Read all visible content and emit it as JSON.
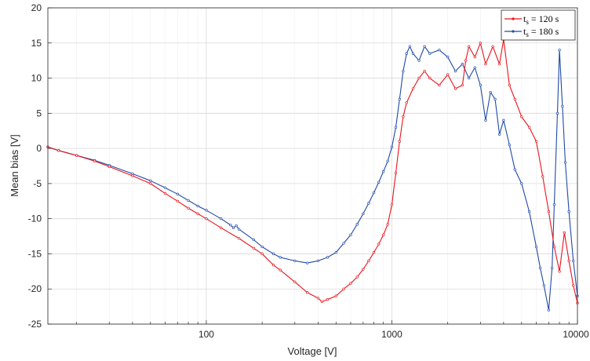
{
  "chart_data": {
    "type": "line",
    "title": "",
    "xlabel": "Voltage [V]",
    "ylabel": "Mean bias [V]",
    "xscale": "log",
    "xlim": [
      14,
      10000
    ],
    "ylim": [
      -25,
      20
    ],
    "grid": true,
    "legend_position": "top-right",
    "x_ticks": [
      {
        "value": 100,
        "label": "100"
      },
      {
        "value": 1000,
        "label": "1000"
      },
      {
        "value": 10000,
        "label": "10000"
      }
    ],
    "y_ticks": [
      {
        "value": 20,
        "label": "20"
      },
      {
        "value": 15,
        "label": "15"
      },
      {
        "value": 10,
        "label": "10"
      },
      {
        "value": 5,
        "label": "5"
      },
      {
        "value": 0,
        "label": "0"
      },
      {
        "value": -5,
        "label": "-5"
      },
      {
        "value": -10,
        "label": "-10"
      },
      {
        "value": -15,
        "label": "-15"
      },
      {
        "value": -20,
        "label": "-20"
      },
      {
        "value": -25,
        "label": "-25"
      }
    ],
    "series": [
      {
        "name": "t_s = 120 s",
        "legend_main": "t",
        "legend_sub": "s",
        "legend_rest": " = 120 s",
        "color": "#e8141b",
        "points": [
          [
            14,
            0.2
          ],
          [
            16,
            -0.3
          ],
          [
            20,
            -1.0
          ],
          [
            25,
            -1.8
          ],
          [
            30,
            -2.6
          ],
          [
            40,
            -3.9
          ],
          [
            50,
            -5.0
          ],
          [
            60,
            -6.4
          ],
          [
            70,
            -7.5
          ],
          [
            80,
            -8.5
          ],
          [
            90,
            -9.3
          ],
          [
            100,
            -10.0
          ],
          [
            120,
            -11.3
          ],
          [
            150,
            -12.8
          ],
          [
            180,
            -14.2
          ],
          [
            200,
            -15.0
          ],
          [
            230,
            -16.6
          ],
          [
            250,
            -17.3
          ],
          [
            300,
            -19.0
          ],
          [
            350,
            -20.5
          ],
          [
            400,
            -21.3
          ],
          [
            420,
            -21.8
          ],
          [
            450,
            -21.5
          ],
          [
            500,
            -21.0
          ],
          [
            550,
            -20.0
          ],
          [
            600,
            -19.2
          ],
          [
            650,
            -18.3
          ],
          [
            700,
            -17.2
          ],
          [
            750,
            -16.0
          ],
          [
            800,
            -14.8
          ],
          [
            850,
            -13.6
          ],
          [
            900,
            -12.3
          ],
          [
            950,
            -10.8
          ],
          [
            1000,
            -8.0
          ],
          [
            1050,
            -3.5
          ],
          [
            1100,
            1.0
          ],
          [
            1150,
            4.5
          ],
          [
            1200,
            6.5
          ],
          [
            1300,
            8.5
          ],
          [
            1400,
            10.0
          ],
          [
            1500,
            11.0
          ],
          [
            1600,
            10.0
          ],
          [
            1800,
            9.0
          ],
          [
            2000,
            10.5
          ],
          [
            2200,
            8.5
          ],
          [
            2400,
            9.0
          ],
          [
            2500,
            12.5
          ],
          [
            2600,
            14.5
          ],
          [
            2800,
            13.0
          ],
          [
            3000,
            15.0
          ],
          [
            3200,
            12.0
          ],
          [
            3500,
            14.5
          ],
          [
            3800,
            12.0
          ],
          [
            4000,
            15.5
          ],
          [
            4300,
            9.0
          ],
          [
            4600,
            7.0
          ],
          [
            5000,
            4.5
          ],
          [
            5500,
            3.0
          ],
          [
            6000,
            1.0
          ],
          [
            6500,
            -4.0
          ],
          [
            7000,
            -9.0
          ],
          [
            7500,
            -14.0
          ],
          [
            8000,
            -17.5
          ],
          [
            8500,
            -12.0
          ],
          [
            9000,
            -16.0
          ],
          [
            9500,
            -19.5
          ],
          [
            10000,
            -22.0
          ]
        ]
      },
      {
        "name": "t_s = 180 s",
        "legend_main": "t",
        "legend_sub": "s",
        "legend_rest": " = 180 s",
        "color": "#1f4aa8",
        "points": [
          [
            14,
            0.2
          ],
          [
            16,
            -0.3
          ],
          [
            20,
            -1.0
          ],
          [
            25,
            -1.7
          ],
          [
            30,
            -2.4
          ],
          [
            40,
            -3.6
          ],
          [
            50,
            -4.6
          ],
          [
            60,
            -5.6
          ],
          [
            70,
            -6.5
          ],
          [
            80,
            -7.4
          ],
          [
            90,
            -8.2
          ],
          [
            100,
            -8.8
          ],
          [
            120,
            -10.0
          ],
          [
            135,
            -10.9
          ],
          [
            140,
            -11.3
          ],
          [
            145,
            -11.0
          ],
          [
            150,
            -11.5
          ],
          [
            180,
            -13.0
          ],
          [
            200,
            -14.0
          ],
          [
            230,
            -15.0
          ],
          [
            250,
            -15.5
          ],
          [
            300,
            -16.0
          ],
          [
            350,
            -16.3
          ],
          [
            400,
            -16.0
          ],
          [
            450,
            -15.5
          ],
          [
            500,
            -14.8
          ],
          [
            550,
            -13.5
          ],
          [
            600,
            -12.3
          ],
          [
            650,
            -10.8
          ],
          [
            700,
            -9.3
          ],
          [
            750,
            -7.8
          ],
          [
            800,
            -6.3
          ],
          [
            850,
            -4.8
          ],
          [
            900,
            -3.3
          ],
          [
            950,
            -1.8
          ],
          [
            1000,
            0.2
          ],
          [
            1050,
            3.0
          ],
          [
            1100,
            7.0
          ],
          [
            1150,
            11.0
          ],
          [
            1200,
            13.5
          ],
          [
            1250,
            14.5
          ],
          [
            1300,
            13.5
          ],
          [
            1400,
            12.5
          ],
          [
            1500,
            14.5
          ],
          [
            1600,
            13.5
          ],
          [
            1800,
            14.0
          ],
          [
            2000,
            13.0
          ],
          [
            2200,
            11.0
          ],
          [
            2400,
            12.0
          ],
          [
            2600,
            10.0
          ],
          [
            2800,
            11.5
          ],
          [
            3000,
            9.0
          ],
          [
            3200,
            4.0
          ],
          [
            3400,
            8.0
          ],
          [
            3600,
            7.0
          ],
          [
            3800,
            2.0
          ],
          [
            4000,
            4.0
          ],
          [
            4300,
            0.5
          ],
          [
            4600,
            -3.0
          ],
          [
            5000,
            -5.0
          ],
          [
            5500,
            -9.0
          ],
          [
            6000,
            -14.0
          ],
          [
            6300,
            -17.0
          ],
          [
            6600,
            -19.5
          ],
          [
            7000,
            -23.0
          ],
          [
            7300,
            -17.0
          ],
          [
            7500,
            -8.0
          ],
          [
            7800,
            5.0
          ],
          [
            8000,
            14.0
          ],
          [
            8300,
            6.0
          ],
          [
            8600,
            -2.0
          ],
          [
            9000,
            -9.0
          ],
          [
            9500,
            -16.0
          ],
          [
            10000,
            -21.0
          ]
        ]
      }
    ]
  }
}
